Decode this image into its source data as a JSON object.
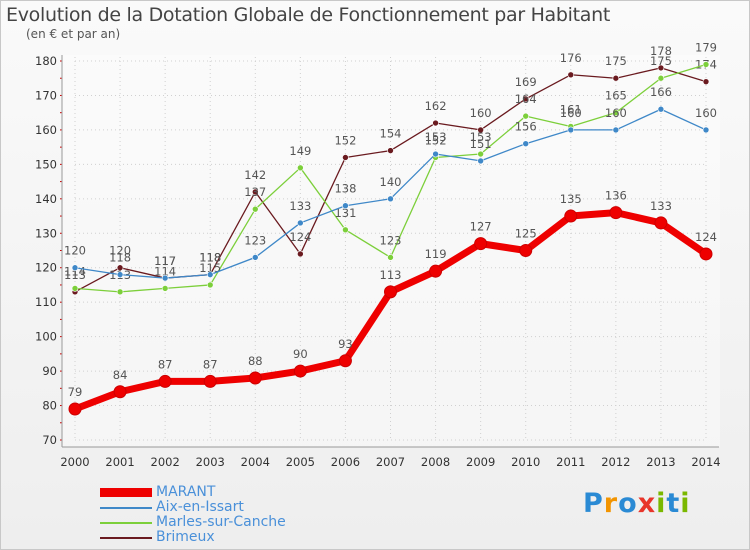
{
  "title": "Evolution de la Dotation Globale de Fonctionnement par Habitant",
  "subtitle": "(en € et par an)",
  "logo": {
    "letters": [
      "P",
      "r",
      "o",
      "x",
      "i",
      "t",
      "i"
    ],
    "colors": [
      "#2a8ad4",
      "#f29400",
      "#2a8ad4",
      "#e8352a",
      "#7ab800",
      "#2a8ad4",
      "#7ab800"
    ]
  },
  "chart_data": {
    "type": "line",
    "x": [
      2000,
      2001,
      2002,
      2003,
      2004,
      2005,
      2006,
      2007,
      2008,
      2009,
      2010,
      2011,
      2012,
      2013,
      2014
    ],
    "ylim": [
      70,
      180
    ],
    "yticks": [
      70,
      80,
      90,
      100,
      110,
      120,
      130,
      140,
      150,
      160,
      170,
      180
    ],
    "grid": true,
    "legend": "bottom-left",
    "series": [
      {
        "name": "MARANT",
        "color": "#ee0000",
        "values": [
          79,
          84,
          87,
          87,
          88,
          90,
          93,
          113,
          119,
          127,
          125,
          135,
          136,
          133,
          124
        ]
      },
      {
        "name": "Aix-en-Issart",
        "color": "#3f88c8",
        "values": [
          120,
          118,
          117,
          118,
          123,
          133,
          138,
          140,
          153,
          151,
          156,
          160,
          160,
          166,
          160
        ]
      },
      {
        "name": "Marles-sur-Canche",
        "color": "#7ccf3a",
        "values": [
          114,
          113,
          114,
          115,
          137,
          149,
          131,
          123,
          152,
          153,
          164,
          161,
          165,
          175,
          179
        ]
      },
      {
        "name": "Brimeux",
        "color": "#6a1a1f",
        "values": [
          113,
          120,
          117,
          118,
          142,
          124,
          152,
          154,
          162,
          160,
          169,
          176,
          175,
          178,
          174
        ]
      }
    ]
  }
}
